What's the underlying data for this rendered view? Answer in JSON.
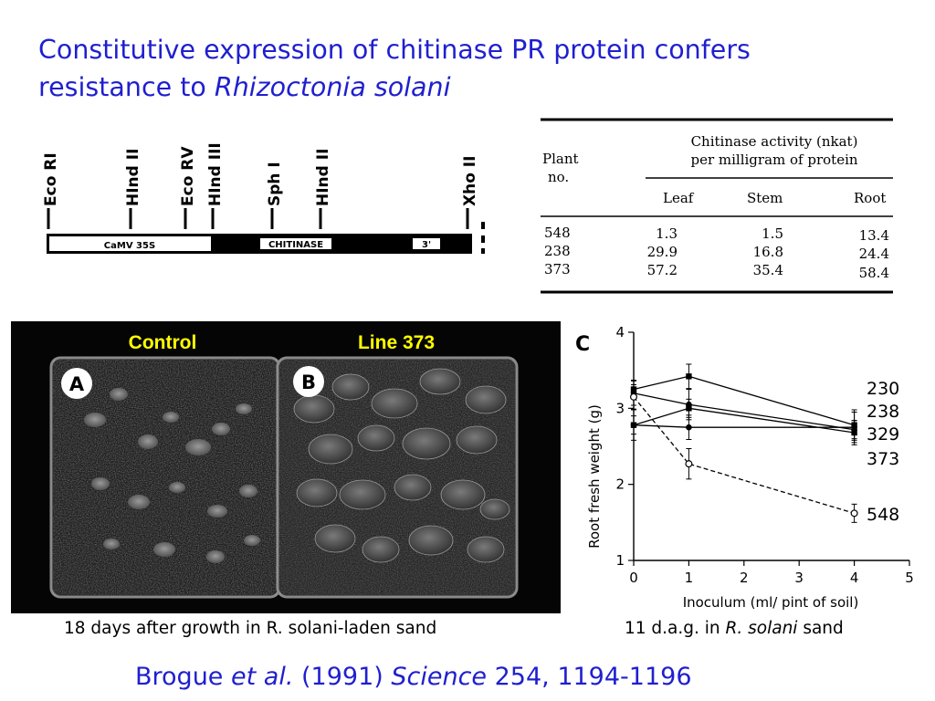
{
  "title": {
    "line1": "Constitutive expression of chitinase PR protein confers",
    "line2_prefix": "resistance to ",
    "line2_italic": "Rhizoctonia solani"
  },
  "construct_map": {
    "sites": [
      "Eco RI",
      "HInd II",
      "Eco RV",
      "HInd III",
      "Sph I",
      "HInd II",
      "Xho II"
    ],
    "segments": [
      "CaMV 35S",
      "CHITINASE",
      "3'"
    ]
  },
  "table": {
    "col_plant_line1": "Plant",
    "col_plant_line2": "no.",
    "group_header_line1": "Chitinase activity (nkat)",
    "group_header_line2": "per milligram of protein",
    "columns": [
      "Leaf",
      "Stem",
      "Root"
    ],
    "rows": [
      {
        "plant": "548",
        "leaf": "1.3",
        "stem": "1.5",
        "root": "13.4"
      },
      {
        "plant": "238",
        "leaf": "29.9",
        "stem": "16.8",
        "root": "24.4"
      },
      {
        "plant": "373",
        "leaf": "57.2",
        "stem": "35.4",
        "root": "58.4"
      }
    ]
  },
  "photo": {
    "label_control": "Control",
    "label_line": "Line 373",
    "panel_a": "A",
    "panel_b": "B",
    "caption": "18 days after growth in R. solani-laden sand"
  },
  "chart_data": {
    "type": "line",
    "panel_letter": "C",
    "xlabel": "Inoculum (ml/ pint of soil)",
    "ylabel": "Root fresh weight (g)",
    "xlim": [
      0,
      5
    ],
    "ylim": [
      1,
      4
    ],
    "xticks": [
      0,
      1,
      2,
      3,
      4,
      5
    ],
    "yticks": [
      1,
      2,
      3,
      4
    ],
    "x": [
      0,
      1,
      4
    ],
    "series": [
      {
        "name": "230",
        "values": [
          3.25,
          3.42,
          2.78
        ],
        "style": "solid",
        "marker": "filled"
      },
      {
        "name": "238",
        "values": [
          3.2,
          3.05,
          2.72
        ],
        "style": "solid",
        "marker": "filled"
      },
      {
        "name": "329",
        "values": [
          2.78,
          3.0,
          2.68
        ],
        "style": "solid",
        "marker": "filled"
      },
      {
        "name": "373",
        "values": [
          2.78,
          2.75,
          2.75
        ],
        "style": "solid",
        "marker": "filled"
      },
      {
        "name": "548",
        "values": [
          3.15,
          2.27,
          1.62
        ],
        "style": "dashed",
        "marker": "open"
      }
    ],
    "legend_labels": [
      "230",
      "238",
      "329",
      "373",
      "548"
    ],
    "caption_prefix": "11 d.a.g. in ",
    "caption_italic": "R. solani",
    "caption_suffix": " sand"
  },
  "citation": {
    "authors": "Brogue ",
    "etal": "et al.",
    "year": " (1991) ",
    "journal": "Science",
    "ref": " 254, 1194-1196"
  },
  "colors": {
    "title": "#1f1fd0",
    "photo_label": "#ffff00"
  }
}
